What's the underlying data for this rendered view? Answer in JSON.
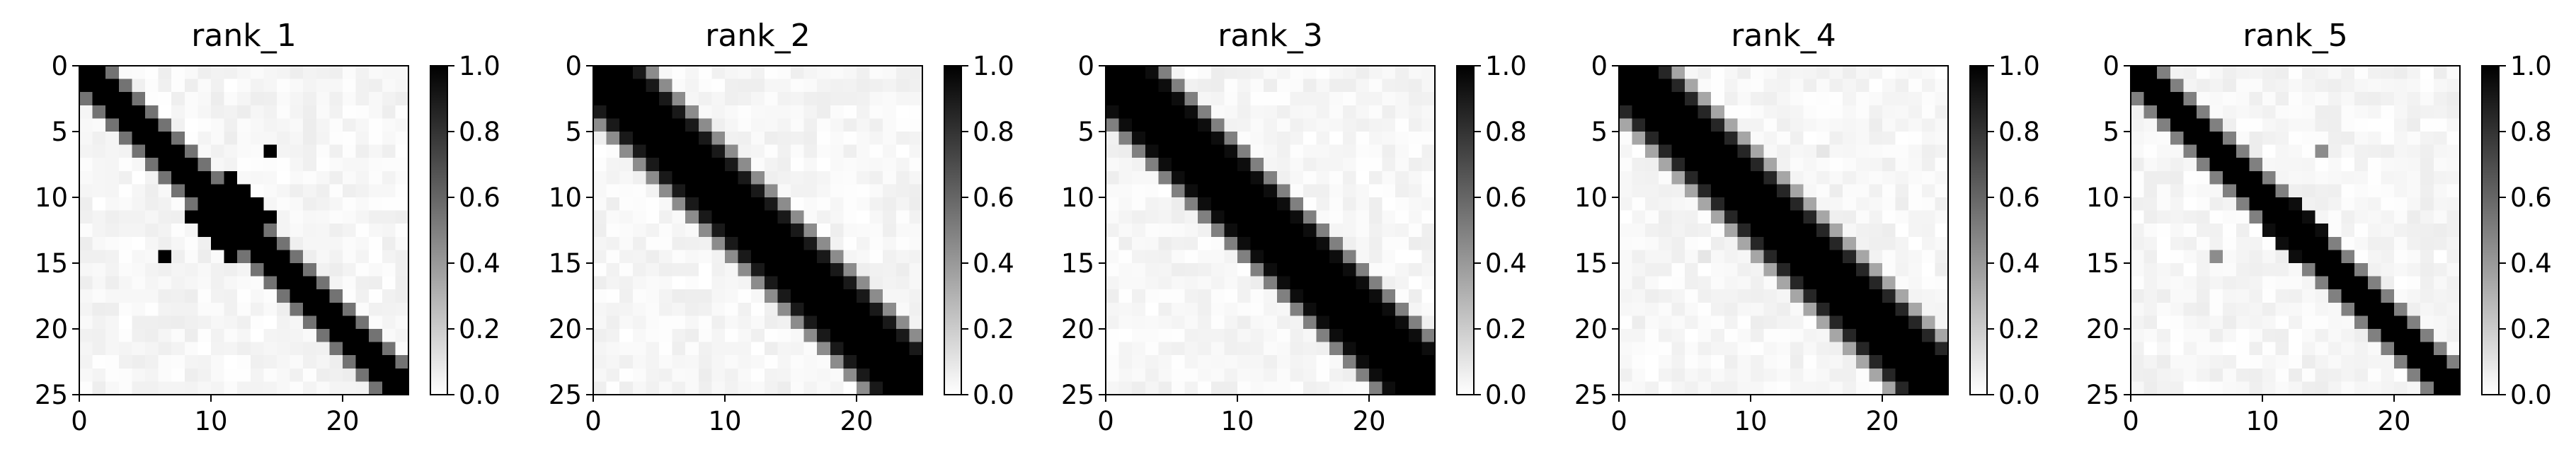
{
  "chart_data": [
    {
      "type": "heatmap",
      "title": "rank_1",
      "grid_size": 25,
      "xlim": [
        0,
        25
      ],
      "ylim": [
        25,
        0
      ],
      "xticks": [
        "0",
        "10",
        "20"
      ],
      "yticks": [
        "0",
        "5",
        "10",
        "15",
        "20",
        "25"
      ],
      "colorbar": {
        "range": [
          0.0,
          1.0
        ],
        "ticks": [
          "0.0",
          "0.2",
          "0.4",
          "0.6",
          "0.8",
          "1.0"
        ],
        "colormap": "Greys"
      },
      "band": {
        "offsets": [
          [
            -2,
            0.55
          ],
          [
            -1,
            1.0
          ],
          [
            0,
            1.0
          ],
          [
            1,
            1.0
          ],
          [
            2,
            0.55
          ]
        ],
        "blob": {
          "row": 11,
          "col": 11,
          "radius": 3.3,
          "value": 1.0
        }
      },
      "outliers": [
        {
          "row": 6,
          "col": 14,
          "value": 1.0
        },
        {
          "row": 14,
          "col": 6,
          "value": 1.0
        }
      ]
    },
    {
      "type": "heatmap",
      "title": "rank_2",
      "grid_size": 25,
      "xlim": [
        0,
        25
      ],
      "ylim": [
        25,
        0
      ],
      "xticks": [
        "0",
        "10",
        "20"
      ],
      "yticks": [
        "0",
        "5",
        "10",
        "15",
        "20",
        "25"
      ],
      "colorbar": {
        "range": [
          0.0,
          1.0
        ],
        "ticks": [
          "0.0",
          "0.2",
          "0.4",
          "0.6",
          "0.8",
          "1.0"
        ],
        "colormap": "Greys"
      },
      "band": {
        "offsets": [
          [
            -4,
            0.45
          ],
          [
            -3,
            0.9
          ],
          [
            -2,
            1.0
          ],
          [
            -1,
            1.0
          ],
          [
            0,
            1.0
          ],
          [
            1,
            1.0
          ],
          [
            2,
            1.0
          ],
          [
            3,
            0.9
          ],
          [
            4,
            0.45
          ]
        ]
      },
      "outliers": []
    },
    {
      "type": "heatmap",
      "title": "rank_3",
      "grid_size": 25,
      "xlim": [
        0,
        25
      ],
      "ylim": [
        25,
        0
      ],
      "xticks": [
        "0",
        "10",
        "20"
      ],
      "yticks": [
        "0",
        "5",
        "10",
        "15",
        "20",
        "25"
      ],
      "colorbar": {
        "range": [
          0.0,
          1.0
        ],
        "ticks": [
          "0.0",
          "0.2",
          "0.4",
          "0.6",
          "0.8",
          "1.0"
        ],
        "colormap": "Greys"
      },
      "band": {
        "offsets": [
          [
            -4,
            0.5
          ],
          [
            -3,
            0.95
          ],
          [
            -2,
            1.0
          ],
          [
            -1,
            1.0
          ],
          [
            0,
            1.0
          ],
          [
            1,
            1.0
          ],
          [
            2,
            1.0
          ],
          [
            3,
            0.95
          ],
          [
            4,
            0.5
          ]
        ]
      },
      "outliers": []
    },
    {
      "type": "heatmap",
      "title": "rank_4",
      "grid_size": 25,
      "xlim": [
        0,
        25
      ],
      "ylim": [
        25,
        0
      ],
      "xticks": [
        "0",
        "10",
        "20"
      ],
      "yticks": [
        "0",
        "5",
        "10",
        "15",
        "20",
        "25"
      ],
      "colorbar": {
        "range": [
          0.0,
          1.0
        ],
        "ticks": [
          "0.0",
          "0.2",
          "0.4",
          "0.6",
          "0.8",
          "1.0"
        ],
        "colormap": "Greys"
      },
      "band": {
        "offsets": [
          [
            -4,
            0.35
          ],
          [
            -3,
            0.85
          ],
          [
            -2,
            1.0
          ],
          [
            -1,
            1.0
          ],
          [
            0,
            1.0
          ],
          [
            1,
            1.0
          ],
          [
            2,
            1.0
          ],
          [
            3,
            0.85
          ],
          [
            4,
            0.35
          ]
        ]
      },
      "outliers": [
        {
          "row": 6,
          "col": 15,
          "value": 0.1
        },
        {
          "row": 14,
          "col": 6,
          "value": 0.1
        }
      ]
    },
    {
      "type": "heatmap",
      "title": "rank_5",
      "grid_size": 25,
      "xlim": [
        0,
        25
      ],
      "ylim": [
        25,
        0
      ],
      "xticks": [
        "0",
        "10",
        "20"
      ],
      "yticks": [
        "0",
        "5",
        "10",
        "15",
        "20",
        "25"
      ],
      "colorbar": {
        "range": [
          0.0,
          1.0
        ],
        "ticks": [
          "0.0",
          "0.2",
          "0.4",
          "0.6",
          "0.8",
          "1.0"
        ],
        "colormap": "Greys"
      },
      "band": {
        "offsets": [
          [
            -2,
            0.5
          ],
          [
            -1,
            1.0
          ],
          [
            0,
            1.0
          ],
          [
            1,
            1.0
          ],
          [
            2,
            0.5
          ]
        ],
        "blob": {
          "row": 12,
          "col": 12,
          "radius": 2.6,
          "value": 0.95
        }
      },
      "outliers": [
        {
          "row": 6,
          "col": 14,
          "value": 0.45
        },
        {
          "row": 14,
          "col": 6,
          "value": 0.45
        }
      ]
    }
  ]
}
